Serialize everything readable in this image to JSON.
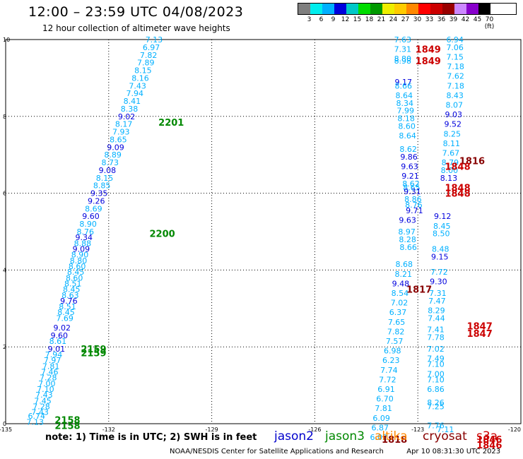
{
  "header": {
    "title": "12:00 – 23:59 UTC 04/08/2023",
    "subtitle": "12 hour collection of altimeter wave heights"
  },
  "colorbar": {
    "colors": [
      "#7f7f7f",
      "#00eeee",
      "#00b0ff",
      "#0000dd",
      "#00c8c8",
      "#00dd00",
      "#009900",
      "#eeee00",
      "#ffcc00",
      "#ff8800",
      "#ff0000",
      "#cc0000",
      "#990000",
      "#cc88ff",
      "#8800cc",
      "#000000"
    ],
    "labels": [
      "3",
      "6",
      "9",
      "12",
      "15",
      "18",
      "21",
      "24",
      "27",
      "30",
      "33",
      "36",
      "39",
      "42",
      "45",
      "70 (ft)"
    ]
  },
  "notes": {
    "text": "note:  1) Time is in UTC;  2) SWH is in feet"
  },
  "satellites": [
    {
      "name": "jason2",
      "color": "#0000cc"
    },
    {
      "name": "jason3",
      "color": "#008800"
    },
    {
      "name": "altika",
      "color": "#ff8800"
    },
    {
      "name": "cryosat",
      "color": "#880000"
    },
    {
      "name": "s3a",
      "color": "#cc0000"
    }
  ],
  "footer": {
    "credit": "NOAA/NESDIS Center for Satellite Applications and Research",
    "timestamp": "Apr 10 08:31:30 UTC 2023"
  },
  "chart_data": {
    "type": "scatter",
    "xlim": [
      -135,
      -120
    ],
    "ylim": [
      0,
      10
    ],
    "x_ticks": [
      "-135",
      "-132",
      "-129",
      "-126",
      "-123",
      "-120"
    ],
    "y_ticks": [
      "0",
      "2",
      "4",
      "6",
      "8",
      "10"
    ],
    "grid": true,
    "series": [
      {
        "name": "jason3",
        "points": [
          [
            -130.68,
            10.0,
            "7.13",
            "c"
          ],
          [
            -130.76,
            9.8,
            "6.97",
            "c"
          ],
          [
            -130.84,
            9.6,
            "7.82",
            "c"
          ],
          [
            -130.92,
            9.4,
            "7.89",
            "c"
          ],
          [
            -131.0,
            9.2,
            "8.15",
            "c"
          ],
          [
            -131.08,
            9.0,
            "8.16",
            "c"
          ],
          [
            -131.16,
            8.8,
            "7.43",
            "c"
          ],
          [
            -131.24,
            8.6,
            "7.94",
            "c"
          ],
          [
            -131.32,
            8.4,
            "8.41",
            "c"
          ],
          [
            -131.4,
            8.2,
            "8.38",
            "c"
          ],
          [
            -131.48,
            8.0,
            "9.02",
            "b"
          ],
          [
            -131.56,
            7.8,
            "8.17",
            "c"
          ],
          [
            -131.64,
            7.6,
            "7.93",
            "c"
          ],
          [
            -131.72,
            7.4,
            "8.65",
            "c"
          ],
          [
            -131.8,
            7.2,
            "9.09",
            "b"
          ],
          [
            -131.88,
            7.0,
            "8.89",
            "c"
          ],
          [
            -131.96,
            6.8,
            "8.73",
            "c"
          ],
          [
            -132.04,
            6.6,
            "9.08",
            "b"
          ],
          [
            -132.12,
            6.4,
            "8.15",
            "c"
          ],
          [
            -132.2,
            6.2,
            "8.85",
            "c"
          ],
          [
            -132.28,
            6.0,
            "9.35",
            "b"
          ],
          [
            -132.36,
            5.8,
            "9.26",
            "b"
          ],
          [
            -132.44,
            5.6,
            "8.69",
            "c"
          ],
          [
            -132.52,
            5.4,
            "9.60",
            "b"
          ],
          [
            -132.6,
            5.2,
            "8.90",
            "c"
          ],
          [
            -132.68,
            5.0,
            "8.76",
            "c"
          ],
          [
            -132.72,
            4.85,
            "9.34",
            "b"
          ],
          [
            -132.76,
            4.7,
            "8.88",
            "c"
          ],
          [
            -132.8,
            4.55,
            "9.09",
            "b"
          ],
          [
            -132.84,
            4.4,
            "8.90",
            "c"
          ],
          [
            -132.88,
            4.25,
            "8.80",
            "c"
          ],
          [
            -132.92,
            4.1,
            "8.60",
            "c"
          ],
          [
            -132.96,
            3.95,
            "8.45",
            "c"
          ],
          [
            -133.0,
            3.8,
            "8.60",
            "c"
          ],
          [
            -133.04,
            3.65,
            "8.51",
            "c"
          ],
          [
            -133.08,
            3.5,
            "8.45",
            "c"
          ],
          [
            -133.12,
            3.35,
            "8.63",
            "c"
          ],
          [
            -133.16,
            3.2,
            "9.76",
            "b"
          ],
          [
            -133.2,
            3.05,
            "8.51",
            "c"
          ],
          [
            -133.24,
            2.9,
            "8.45",
            "c"
          ],
          [
            -133.28,
            2.75,
            "7.69",
            "c"
          ],
          [
            -133.36,
            2.5,
            "9.02",
            "b"
          ],
          [
            -133.44,
            2.3,
            "9.60",
            "b"
          ],
          [
            -133.48,
            2.15,
            "8.61",
            "c"
          ],
          [
            -133.52,
            1.95,
            "9.01",
            "b"
          ],
          [
            -133.6,
            1.8,
            "7.94",
            "c"
          ],
          [
            -133.64,
            1.65,
            "7.97",
            "c"
          ],
          [
            -133.68,
            1.5,
            "7.81",
            "c"
          ],
          [
            -133.72,
            1.35,
            "7.46",
            "c"
          ],
          [
            -133.76,
            1.2,
            "7.28",
            "c"
          ],
          [
            -133.8,
            1.05,
            "7.00",
            "c"
          ],
          [
            -133.84,
            0.9,
            "7.10",
            "c"
          ],
          [
            -133.88,
            0.75,
            "7.43",
            "c"
          ],
          [
            -133.92,
            0.6,
            "7.45",
            "c"
          ],
          [
            -133.96,
            0.45,
            "7.28",
            "c"
          ],
          [
            -134.0,
            0.3,
            "7.43",
            "c"
          ],
          [
            -134.1,
            0.2,
            "6.74",
            "c"
          ],
          [
            -134.14,
            0.05,
            "7.13",
            "c"
          ],
          [
            -123.44,
            10.0,
            "7.63",
            "c"
          ],
          [
            -123.44,
            9.75,
            "7.31",
            "c"
          ],
          [
            -123.44,
            9.5,
            "8.80",
            "c"
          ],
          [
            -123.44,
            9.45,
            "8.98",
            "c"
          ],
          [
            -123.42,
            8.9,
            "9.17",
            "b"
          ],
          [
            -123.42,
            8.8,
            "8.66",
            "c"
          ],
          [
            -123.4,
            8.55,
            "8.64",
            "c"
          ],
          [
            -123.38,
            8.35,
            "8.34",
            "c"
          ],
          [
            -123.36,
            8.15,
            "7.99",
            "c"
          ],
          [
            -123.34,
            7.95,
            "8.18",
            "c"
          ],
          [
            -123.32,
            7.75,
            "8.60",
            "c"
          ],
          [
            -123.3,
            7.5,
            "8.64",
            "c"
          ],
          [
            -123.28,
            7.15,
            "8.62",
            "c"
          ],
          [
            -123.26,
            6.95,
            "9.86",
            "b"
          ],
          [
            -123.24,
            6.7,
            "9.63",
            "b"
          ],
          [
            -123.22,
            6.45,
            "9.21",
            "b"
          ],
          [
            -123.2,
            6.25,
            "8.62",
            "c"
          ],
          [
            -123.18,
            6.15,
            "8.65",
            "c"
          ],
          [
            -123.16,
            6.05,
            "9.31",
            "b"
          ],
          [
            -123.14,
            5.85,
            "8.86",
            "c"
          ],
          [
            -123.12,
            5.7,
            "8.76",
            "c"
          ],
          [
            -123.1,
            5.55,
            "9.71",
            "b"
          ],
          [
            -123.3,
            5.3,
            "9.63",
            "b"
          ],
          [
            -123.32,
            5.0,
            "8.97",
            "c"
          ],
          [
            -123.3,
            4.8,
            "8.28",
            "c"
          ],
          [
            -123.28,
            4.6,
            "8.66",
            "c"
          ],
          [
            -123.4,
            4.15,
            "8.68",
            "c"
          ],
          [
            -123.42,
            3.9,
            "8.21",
            "c"
          ],
          [
            -123.5,
            3.65,
            "9.48",
            "b"
          ],
          [
            -123.52,
            3.4,
            "8.54",
            "c"
          ],
          [
            -123.54,
            3.15,
            "7.02",
            "c"
          ],
          [
            -123.58,
            2.9,
            "6.37",
            "c"
          ],
          [
            -123.62,
            2.65,
            "7.65",
            "c"
          ],
          [
            -123.64,
            2.4,
            "7.82",
            "c"
          ],
          [
            -123.68,
            2.15,
            "7.57",
            "c"
          ],
          [
            -123.74,
            1.9,
            "6.98",
            "c"
          ],
          [
            -123.78,
            1.65,
            "6.23",
            "c"
          ],
          [
            -123.84,
            1.4,
            "7.74",
            "c"
          ],
          [
            -123.88,
            1.15,
            "7.72",
            "c"
          ],
          [
            -123.92,
            0.9,
            "6.91",
            "c"
          ],
          [
            -123.96,
            0.65,
            "6.70",
            "c"
          ],
          [
            -124.0,
            0.4,
            "7.81",
            "c"
          ],
          [
            -124.06,
            0.15,
            "6.09",
            "c"
          ],
          [
            -124.1,
            -0.1,
            "6.87",
            "c"
          ],
          [
            -124.14,
            -0.35,
            "6.02",
            "c"
          ]
        ]
      },
      {
        "name": "jason2",
        "points": [
          [
            -121.92,
            10.0,
            "6.94",
            "c"
          ],
          [
            -121.92,
            9.8,
            "7.06",
            "c"
          ],
          [
            -121.92,
            9.55,
            "7.15",
            "c"
          ],
          [
            -121.9,
            9.3,
            "7.18",
            "c"
          ],
          [
            -121.9,
            9.05,
            "7.62",
            "c"
          ],
          [
            -121.9,
            8.8,
            "7.18",
            "c"
          ],
          [
            -121.92,
            8.55,
            "8.43",
            "c"
          ],
          [
            -121.94,
            8.3,
            "8.07",
            "c"
          ],
          [
            -121.96,
            8.05,
            "9.03",
            "b"
          ],
          [
            -121.98,
            7.8,
            "9.52",
            "b"
          ],
          [
            -122.0,
            7.55,
            "8.25",
            "c"
          ],
          [
            -122.02,
            7.3,
            "8.11",
            "c"
          ],
          [
            -122.04,
            7.05,
            "7.67",
            "c"
          ],
          [
            -122.06,
            6.8,
            "8.79",
            "c"
          ],
          [
            -122.08,
            6.6,
            "8.00",
            "c"
          ],
          [
            -122.1,
            6.4,
            "8.13",
            "b"
          ],
          [
            -122.28,
            5.4,
            "9.12",
            "b"
          ],
          [
            -122.3,
            5.15,
            "8.45",
            "c"
          ],
          [
            -122.32,
            4.95,
            "8.50",
            "c"
          ],
          [
            -122.34,
            4.55,
            "8.48",
            "c"
          ],
          [
            -122.36,
            4.35,
            "9.15",
            "b"
          ],
          [
            -122.38,
            3.95,
            "7.72",
            "c"
          ],
          [
            -122.4,
            3.7,
            "9.30",
            "b"
          ],
          [
            -122.42,
            3.4,
            "7.31",
            "c"
          ],
          [
            -122.44,
            3.2,
            "7.47",
            "c"
          ],
          [
            -122.46,
            2.95,
            "8.29",
            "c"
          ],
          [
            -122.46,
            2.75,
            "7.44",
            "c"
          ],
          [
            -122.48,
            2.45,
            "7.41",
            "c"
          ],
          [
            -122.48,
            2.25,
            "7.78",
            "c"
          ],
          [
            -122.48,
            1.95,
            "7.02",
            "c"
          ],
          [
            -122.48,
            1.7,
            "7.49",
            "c"
          ],
          [
            -122.48,
            1.55,
            "7.10",
            "c"
          ],
          [
            -122.48,
            1.3,
            "7.00",
            "c"
          ],
          [
            -122.48,
            1.15,
            "7.10",
            "c"
          ],
          [
            -122.48,
            0.9,
            "6.86",
            "c"
          ],
          [
            -122.48,
            0.55,
            "8.26",
            "c"
          ],
          [
            -122.48,
            0.45,
            "7.25",
            "c"
          ],
          [
            -122.48,
            -0.05,
            "7.76",
            "c"
          ],
          [
            -122.2,
            -0.15,
            "7.11",
            "c"
          ]
        ]
      }
    ],
    "time_labels": [
      {
        "x": -122.7,
        "y": 9.75,
        "text": "1849",
        "c": "#cc0000"
      },
      {
        "x": -122.7,
        "y": 9.45,
        "text": "1849",
        "c": "#cc0000"
      },
      {
        "x": -121.42,
        "y": 6.85,
        "text": "1816",
        "c": "#880000"
      },
      {
        "x": -121.84,
        "y": 6.7,
        "text": "1848",
        "c": "#cc0000"
      },
      {
        "x": -121.84,
        "y": 6.15,
        "text": "1848",
        "c": "#cc0000"
      },
      {
        "x": -121.84,
        "y": 6.0,
        "text": "1848",
        "c": "#cc0000"
      },
      {
        "x": -122.96,
        "y": 3.5,
        "text": "1817",
        "c": "#880000"
      },
      {
        "x": -121.2,
        "y": 2.55,
        "text": "1847",
        "c": "#cc0000"
      },
      {
        "x": -121.2,
        "y": 2.35,
        "text": "1847",
        "c": "#cc0000"
      },
      {
        "x": -123.68,
        "y": -0.4,
        "text": "1818",
        "c": "#880000"
      },
      {
        "x": -120.92,
        "y": -0.4,
        "text": "1846",
        "c": "#cc0000"
      },
      {
        "x": -120.92,
        "y": -0.55,
        "text": "1846",
        "c": "#cc0000"
      },
      {
        "x": -130.18,
        "y": 7.85,
        "text": "2201",
        "c": "#008800"
      },
      {
        "x": -130.44,
        "y": 4.95,
        "text": "2200",
        "c": "#008800"
      },
      {
        "x": -132.44,
        "y": 1.95,
        "text": "2159",
        "c": "#008800"
      },
      {
        "x": -132.44,
        "y": 1.85,
        "text": "2159",
        "c": "#008800"
      },
      {
        "x": -133.2,
        "y": 0.1,
        "text": "2158",
        "c": "#008800"
      },
      {
        "x": -133.2,
        "y": -0.05,
        "text": "2158",
        "c": "#008800"
      }
    ]
  }
}
